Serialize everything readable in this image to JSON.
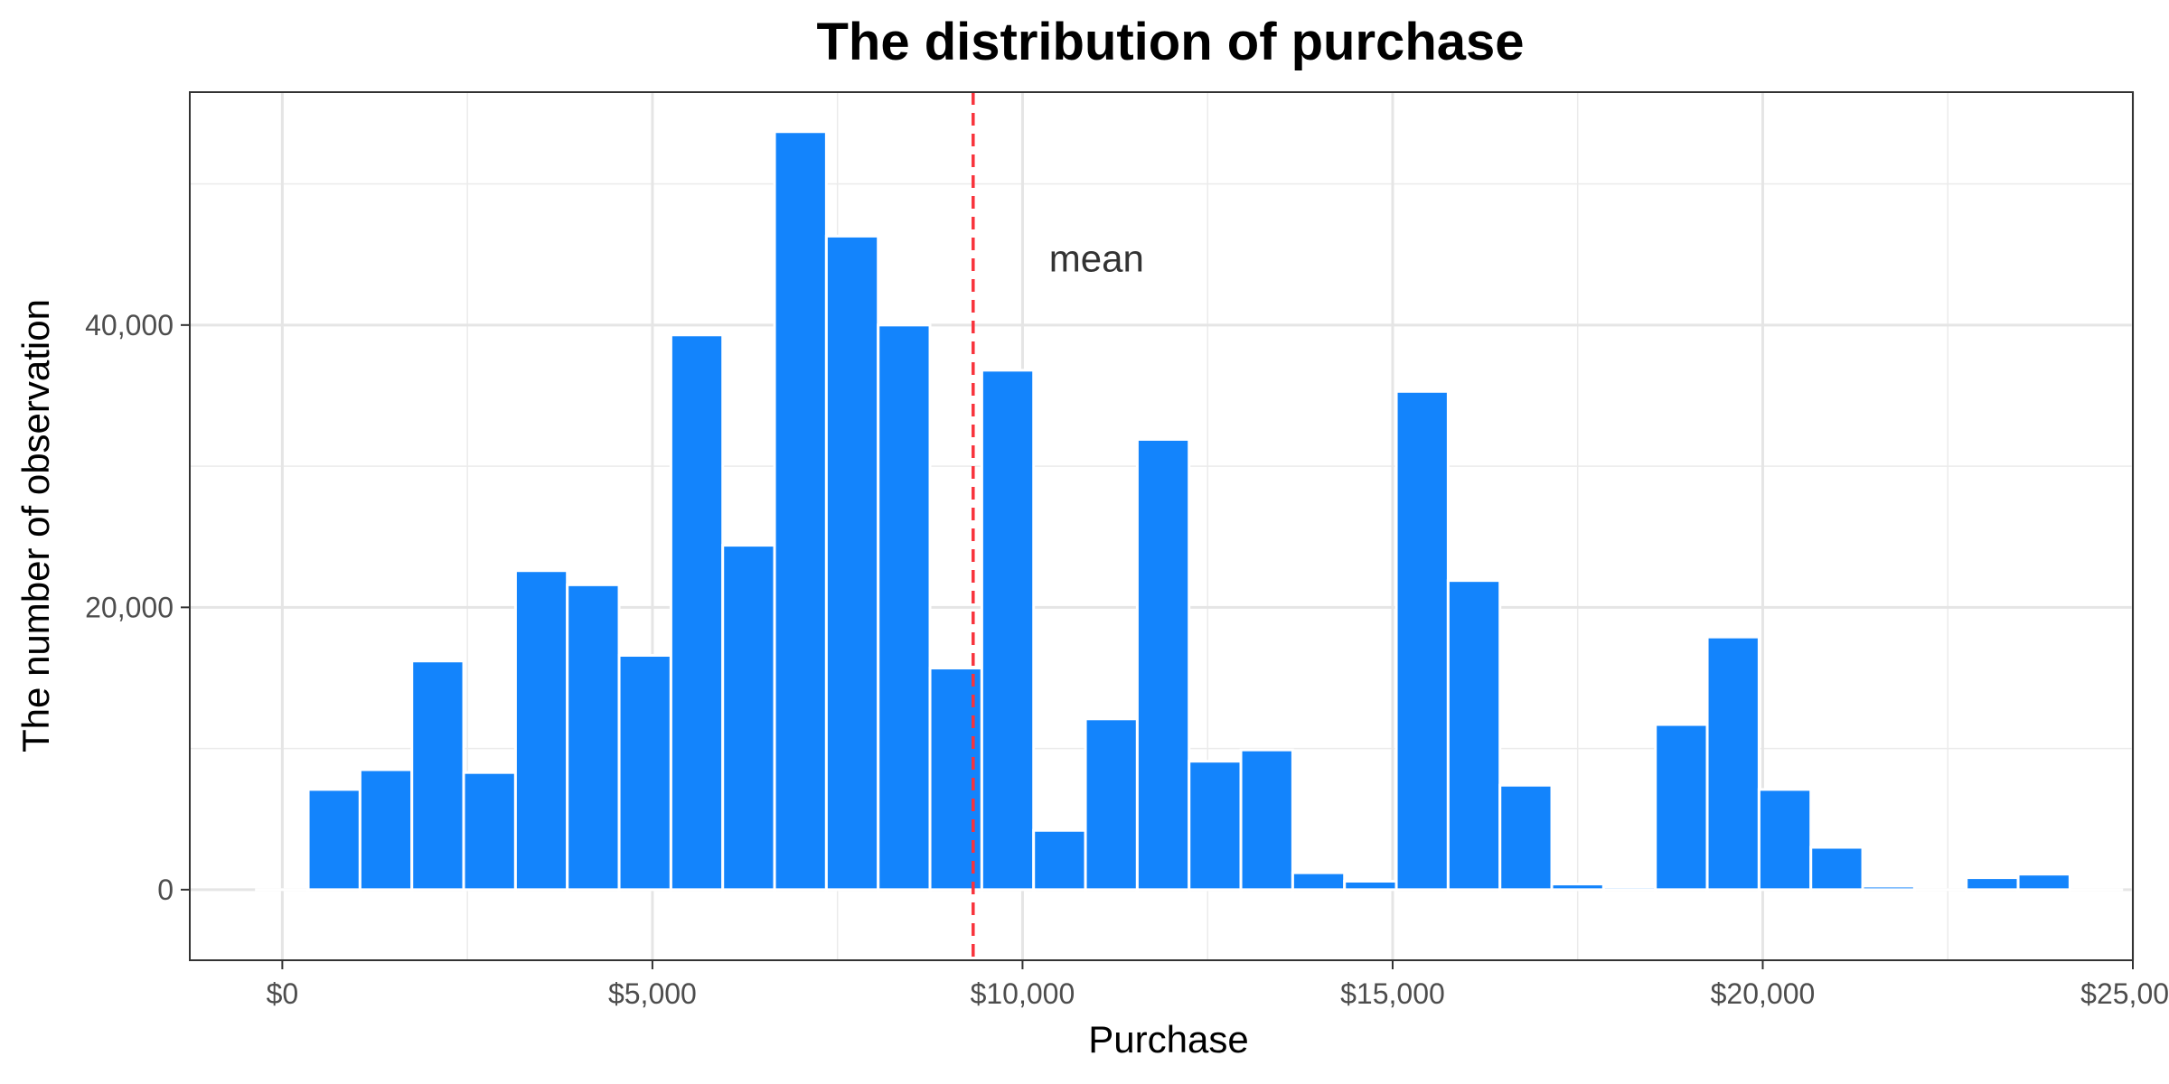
{
  "chart_data": {
    "type": "bar",
    "title": "The distribution of purchase",
    "xlabel": "Purchase",
    "ylabel": "The number of observation",
    "xlim": [
      -1250,
      25000
    ],
    "ylim": [
      -5000,
      56500
    ],
    "x_ticks": [
      {
        "value": 0,
        "label": "$0"
      },
      {
        "value": 5000,
        "label": "$5,000"
      },
      {
        "value": 10000,
        "label": "$10,000"
      },
      {
        "value": 15000,
        "label": "$15,000"
      },
      {
        "value": 20000,
        "label": "$20,000"
      },
      {
        "value": 25000,
        "label": "$25,000"
      }
    ],
    "y_ticks": [
      {
        "value": 0,
        "label": "0"
      },
      {
        "value": 20000,
        "label": "20,000"
      },
      {
        "value": 40000,
        "label": "40,000"
      }
    ],
    "grid": true,
    "bin_width": 700,
    "bar_color": "#1384FC",
    "bins": [
      {
        "x": 0,
        "count": 0
      },
      {
        "x": 700,
        "count": 7100
      },
      {
        "x": 1400,
        "count": 8500
      },
      {
        "x": 2100,
        "count": 16200
      },
      {
        "x": 2800,
        "count": 8300
      },
      {
        "x": 3500,
        "count": 22600
      },
      {
        "x": 4200,
        "count": 21600
      },
      {
        "x": 4900,
        "count": 16600
      },
      {
        "x": 5600,
        "count": 39300
      },
      {
        "x": 6300,
        "count": 24400
      },
      {
        "x": 7000,
        "count": 53700
      },
      {
        "x": 7700,
        "count": 46300
      },
      {
        "x": 8400,
        "count": 40000
      },
      {
        "x": 9100,
        "count": 15700
      },
      {
        "x": 9800,
        "count": 36800
      },
      {
        "x": 10500,
        "count": 4200
      },
      {
        "x": 11200,
        "count": 12100
      },
      {
        "x": 11900,
        "count": 31900
      },
      {
        "x": 12600,
        "count": 9100
      },
      {
        "x": 13300,
        "count": 9900
      },
      {
        "x": 14000,
        "count": 1200
      },
      {
        "x": 14700,
        "count": 600
      },
      {
        "x": 15400,
        "count": 35300
      },
      {
        "x": 16100,
        "count": 21900
      },
      {
        "x": 16800,
        "count": 7400
      },
      {
        "x": 17500,
        "count": 400
      },
      {
        "x": 18200,
        "count": 200
      },
      {
        "x": 18900,
        "count": 11700
      },
      {
        "x": 19600,
        "count": 17900
      },
      {
        "x": 20300,
        "count": 7100
      },
      {
        "x": 21000,
        "count": 3000
      },
      {
        "x": 21700,
        "count": 250
      },
      {
        "x": 22400,
        "count": 0
      },
      {
        "x": 23100,
        "count": 850
      },
      {
        "x": 23800,
        "count": 1100
      },
      {
        "x": 24500,
        "count": 0
      }
    ],
    "mean_line": {
      "x": 9333,
      "color": "#F8333C"
    },
    "annotations": [
      {
        "text": "mean",
        "x": 11000,
        "y": 44500
      }
    ]
  }
}
